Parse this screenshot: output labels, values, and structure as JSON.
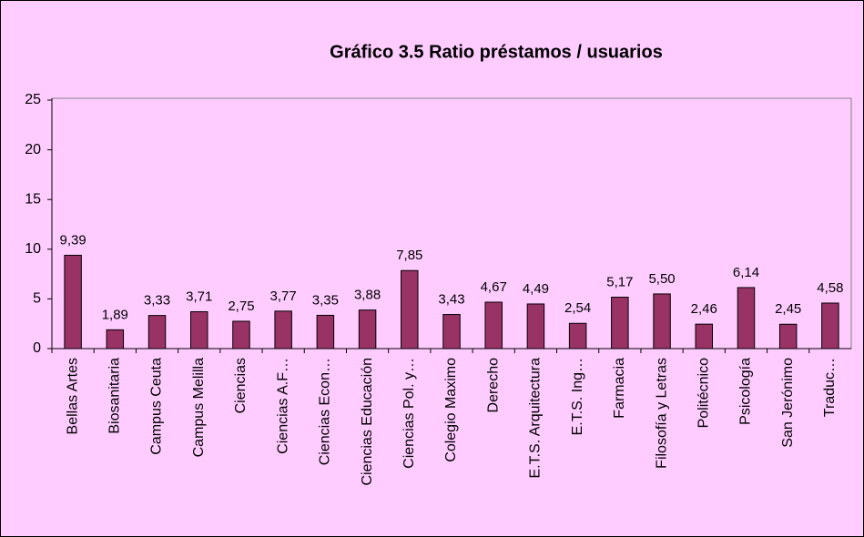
{
  "chart_data": {
    "type": "bar",
    "title": "Gráfico 3.5 Ratio préstamos / usuarios",
    "categories": [
      "Bellas Artes",
      "Biosanitaria",
      "Campus Ceuta",
      "Campus Melilla",
      "Ciencias",
      "Ciencias A.F…",
      "Ciencias Econ…",
      "Ciencias Educación",
      "Ciencias Pol. y…",
      "Colegio Maximo",
      "Derecho",
      "E.T.S. Arquitectura",
      "E.T.S. Ing…",
      "Farmacia",
      "Filosofía y Letras",
      "Politécnico",
      "Psicología",
      "San Jerónimo",
      "Traduc…"
    ],
    "values": [
      9.39,
      1.89,
      3.33,
      3.71,
      2.75,
      3.77,
      3.35,
      3.88,
      7.85,
      3.43,
      4.67,
      4.49,
      2.54,
      5.17,
      5.5,
      2.46,
      6.14,
      2.45,
      4.58
    ],
    "value_labels": [
      "9,39",
      "1,89",
      "3,33",
      "3,71",
      "2,75",
      "3,77",
      "3,35",
      "3,88",
      "7,85",
      "3,43",
      "4,67",
      "4,49",
      "2,54",
      "5,17",
      "5,50",
      "2,46",
      "6,14",
      "2,45",
      "4,58"
    ],
    "color": "#993366",
    "ylim": [
      0,
      25
    ],
    "yticks": [
      0,
      5,
      10,
      15,
      20,
      25
    ],
    "grid": false
  }
}
